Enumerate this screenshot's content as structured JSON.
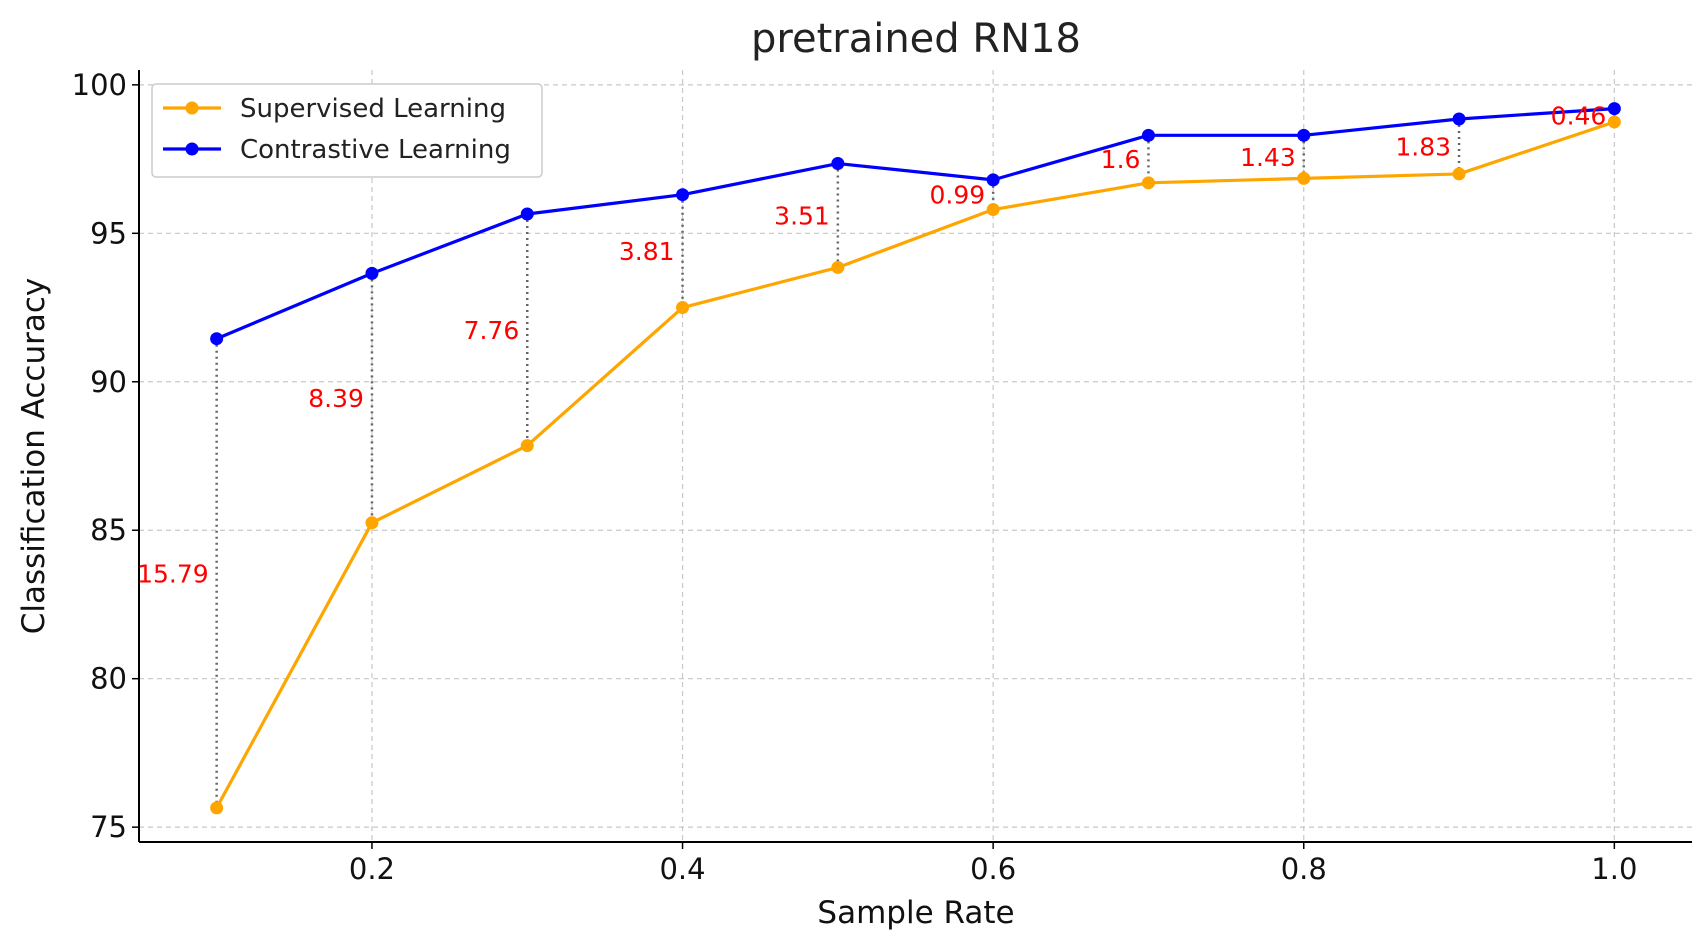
{
  "chart_data": {
    "type": "line",
    "title": "pretrained RN18",
    "xlabel": "Sample Rate",
    "ylabel": "Classification Accuracy",
    "x": [
      0.1,
      0.2,
      0.3,
      0.4,
      0.5,
      0.6,
      0.7,
      0.8,
      0.9,
      1.0
    ],
    "xlim": [
      0.05,
      1.05
    ],
    "ylim": [
      74.5,
      100.5
    ],
    "xticks": [
      0.2,
      0.4,
      0.6,
      0.8,
      1.0
    ],
    "xtick_labels": [
      "0.2",
      "0.4",
      "0.6",
      "0.8",
      "1.0"
    ],
    "yticks": [
      75,
      80,
      85,
      90,
      95,
      100
    ],
    "ytick_labels": [
      "75",
      "80",
      "85",
      "90",
      "95",
      "100"
    ],
    "grid": true,
    "legend_position": "top-left",
    "series": [
      {
        "name": "Supervised Learning",
        "color": "#ffa500",
        "values": [
          75.65,
          85.25,
          87.85,
          92.5,
          93.85,
          95.8,
          96.7,
          96.85,
          97.0,
          98.75
        ]
      },
      {
        "name": "Contrastive Learning",
        "color": "#0000ff",
        "values": [
          91.45,
          93.65,
          95.65,
          96.3,
          97.35,
          96.8,
          98.3,
          98.3,
          98.85,
          99.2
        ]
      }
    ],
    "annotations": {
      "color": "#ff0000",
      "labels": [
        "15.79",
        "8.39",
        "7.76",
        "3.81",
        "3.51",
        "0.99",
        "1.6",
        "1.43",
        "1.83",
        "0.46"
      ]
    }
  }
}
